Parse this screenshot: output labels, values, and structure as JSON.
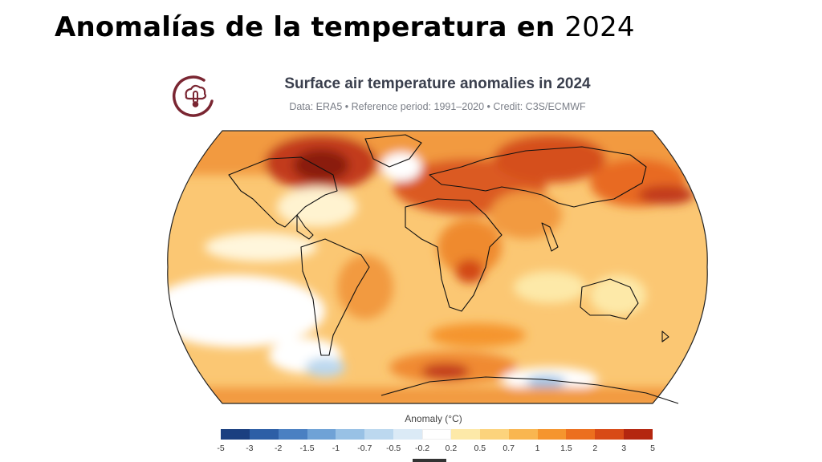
{
  "slide": {
    "title_main": "Anomalías de la temperatura en",
    "title_year": "2024"
  },
  "map": {
    "title": "Surface air temperature anomalies in 2024",
    "subtitle": "Data: ERA5 • Reference period: 1991–2020 • Credit: C3S/ECMWF",
    "projection": "robinson",
    "logo_icon": "thermometer-cloud-icon"
  },
  "legend": {
    "title": "Anomaly (°C)",
    "ticks": [
      "-5",
      "-3",
      "-2",
      "-1.5",
      "-1",
      "-0.7",
      "-0.5",
      "-0.2",
      "0.2",
      "0.5",
      "0.7",
      "1",
      "1.5",
      "2",
      "3",
      "5"
    ],
    "colors": [
      "#1b3f80",
      "#2d5fa6",
      "#4a80c2",
      "#6fa2d6",
      "#98c1e5",
      "#bcd8ef",
      "#dbeaf6",
      "#ffffff",
      "#fde9a8",
      "#fcd37c",
      "#f9b650",
      "#f5952e",
      "#ec6f1e",
      "#d84a16",
      "#b4260f"
    ]
  }
}
